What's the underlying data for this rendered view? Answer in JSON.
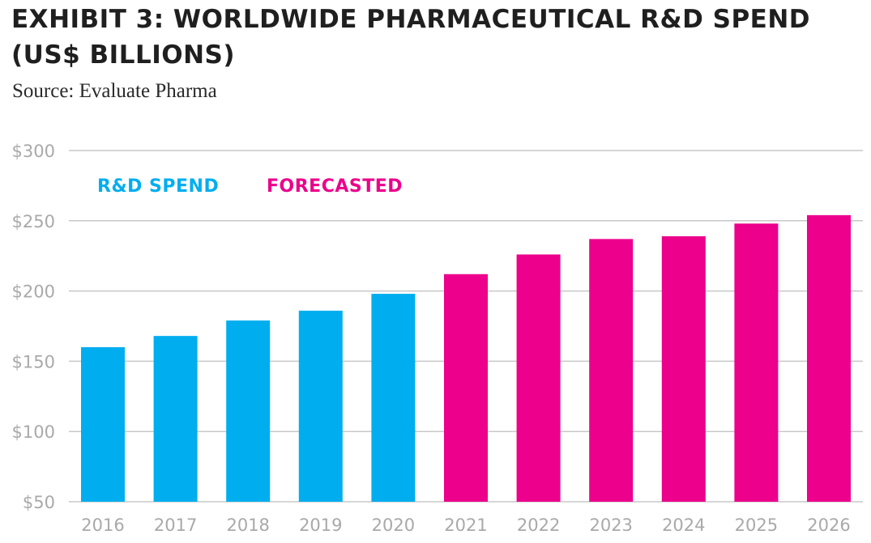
{
  "title": "EXHIBIT 3: WORLDWIDE PHARMACEUTICAL R&D SPEND (US$ BILLIONS)",
  "source": "Source: Evaluate Pharma",
  "colors": {
    "actual": "#00aeef",
    "forecast": "#ec008c",
    "grid": "#c8c8c8",
    "tick": "#a9a9a9",
    "title": "#1f1f1f"
  },
  "chart_data": {
    "type": "bar",
    "categories": [
      "2016",
      "2017",
      "2018",
      "2019",
      "2020",
      "2021",
      "2022",
      "2023",
      "2024",
      "2025",
      "2026"
    ],
    "series": [
      {
        "name": "R&D SPEND",
        "color": "#00aeef",
        "values": [
          160,
          168,
          179,
          186,
          198,
          null,
          null,
          null,
          null,
          null,
          null
        ]
      },
      {
        "name": "FORECASTED",
        "color": "#ec008c",
        "values": [
          null,
          null,
          null,
          null,
          null,
          212,
          226,
          237,
          239,
          248,
          254
        ]
      }
    ],
    "ylim": [
      50,
      300
    ],
    "yticks": [
      50,
      100,
      150,
      200,
      250,
      300
    ],
    "ytick_labels": [
      "$50",
      "$100",
      "$150",
      "$200",
      "$250",
      "$300"
    ],
    "grid": true,
    "legend_position": "top-left",
    "xlabel": "",
    "ylabel": ""
  }
}
